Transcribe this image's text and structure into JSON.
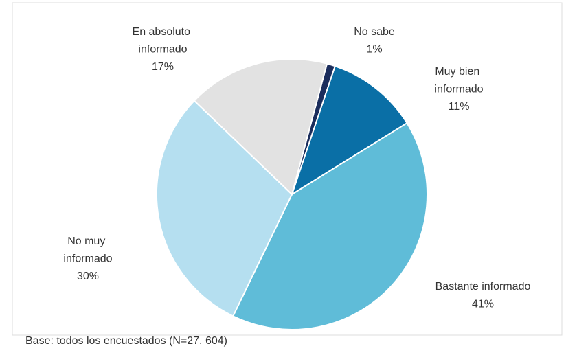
{
  "chart_data": {
    "type": "pie",
    "categories": [
      "No sabe",
      "Muy bien informado",
      "Bastante informado",
      "No muy informado",
      "En absoluto informado"
    ],
    "values": [
      1,
      11,
      41,
      30,
      17
    ],
    "value_labels": [
      "1%",
      "11%",
      "41%",
      "30%",
      "17%"
    ],
    "colors": [
      "#1b2d5c",
      "#0a6fa6",
      "#5fbcd8",
      "#b5dff0",
      "#e2e2e2"
    ],
    "footnote": "Base: todos los encuestados (N=27, 604)"
  }
}
